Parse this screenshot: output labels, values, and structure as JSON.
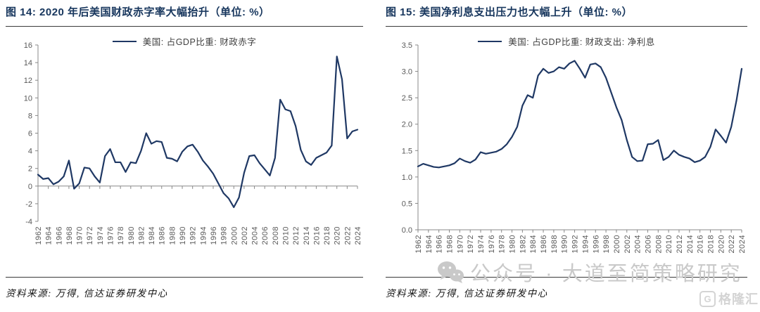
{
  "figures": [
    {
      "source": "资料来源: 万得, 信达证券研发中心"
    },
    {
      "source": "资料来源: 万得, 信达证券研发中心"
    }
  ],
  "watermark": {
    "icon": "wechat-icon",
    "text": "公众号 · 大道至简策略研究"
  },
  "brand": {
    "icon_letter": "G",
    "text": "格隆汇"
  },
  "colors": {
    "line": "#1F3864",
    "title": "#17365D",
    "axis": "#888888",
    "tick_label": "#595959",
    "rule": "#3a3a3a",
    "watermark": "#c9c9c9"
  },
  "chart_data": [
    {
      "type": "line",
      "title": "图 14: 2020 年后美国财政赤字率大幅抬升（单位: %）",
      "xlabel": "",
      "ylabel": "",
      "grid": false,
      "legend_position": "top",
      "ylim": [
        -4,
        16
      ],
      "ytick_step": 2,
      "yticks": [
        "16",
        "14",
        "12",
        "10",
        "8",
        "6",
        "4",
        "2",
        "0",
        "-2",
        "-4"
      ],
      "xticks": [
        "1962",
        "1964",
        "1966",
        "1968",
        "1970",
        "1972",
        "1974",
        "1976",
        "1978",
        "1980",
        "1982",
        "1984",
        "1986",
        "1988",
        "1990",
        "1992",
        "1994",
        "1996",
        "1998",
        "2000",
        "2002",
        "2004",
        "2006",
        "2008",
        "2010",
        "2012",
        "2014",
        "2016",
        "2018",
        "2020",
        "2022",
        "2024"
      ],
      "x": [
        1962,
        1963,
        1964,
        1965,
        1966,
        1967,
        1968,
        1969,
        1970,
        1971,
        1972,
        1973,
        1974,
        1975,
        1976,
        1977,
        1978,
        1979,
        1980,
        1981,
        1982,
        1983,
        1984,
        1985,
        1986,
        1987,
        1988,
        1989,
        1990,
        1991,
        1992,
        1993,
        1994,
        1995,
        1996,
        1997,
        1998,
        1999,
        2000,
        2001,
        2002,
        2003,
        2004,
        2005,
        2006,
        2007,
        2008,
        2009,
        2010,
        2011,
        2012,
        2013,
        2014,
        2015,
        2016,
        2017,
        2018,
        2019,
        2020,
        2021,
        2022,
        2023,
        2024
      ],
      "series": [
        {
          "name": "美国: 占GDP比重: 财政赤字",
          "values": [
            1.3,
            0.8,
            0.9,
            0.2,
            0.5,
            1.1,
            2.9,
            -0.3,
            0.3,
            2.1,
            2.0,
            1.1,
            0.4,
            3.4,
            4.2,
            2.7,
            2.7,
            1.6,
            2.7,
            2.6,
            4.0,
            6.0,
            4.8,
            5.1,
            5.0,
            3.2,
            3.1,
            2.8,
            3.9,
            4.5,
            4.7,
            3.9,
            2.9,
            2.2,
            1.4,
            0.3,
            -0.8,
            -1.4,
            -2.4,
            -1.3,
            1.5,
            3.4,
            3.5,
            2.6,
            1.9,
            1.2,
            3.2,
            9.8,
            8.7,
            8.5,
            6.8,
            4.1,
            2.8,
            2.4,
            3.2,
            3.5,
            3.8,
            4.6,
            14.7,
            12.1,
            5.4,
            6.2,
            6.4
          ]
        }
      ],
      "line_color": "#1F3864"
    },
    {
      "type": "line",
      "title": "图 15: 美国净利息支出压力也大幅上升（单位: %）",
      "xlabel": "",
      "ylabel": "",
      "grid": false,
      "legend_position": "top",
      "ylim": [
        0,
        3.5
      ],
      "ytick_step": 0.5,
      "yticks": [
        "3.5",
        "3.0",
        "2.5",
        "2.0",
        "1.5",
        "1.0",
        "0.5",
        "0.0"
      ],
      "xticks": [
        "1962",
        "1964",
        "1966",
        "1968",
        "1970",
        "1972",
        "1974",
        "1976",
        "1978",
        "1980",
        "1982",
        "1984",
        "1986",
        "1988",
        "1990",
        "1992",
        "1994",
        "1996",
        "1998",
        "2000",
        "2002",
        "2004",
        "2006",
        "2008",
        "2010",
        "2012",
        "2014",
        "2016",
        "2018",
        "2020",
        "2022",
        "2024"
      ],
      "x": [
        1962,
        1963,
        1964,
        1965,
        1966,
        1967,
        1968,
        1969,
        1970,
        1971,
        1972,
        1973,
        1974,
        1975,
        1976,
        1977,
        1978,
        1979,
        1980,
        1981,
        1982,
        1983,
        1984,
        1985,
        1986,
        1987,
        1988,
        1989,
        1990,
        1991,
        1992,
        1993,
        1994,
        1995,
        1996,
        1997,
        1998,
        1999,
        2000,
        2001,
        2002,
        2003,
        2004,
        2005,
        2006,
        2007,
        2008,
        2009,
        2010,
        2011,
        2012,
        2013,
        2014,
        2015,
        2016,
        2017,
        2018,
        2019,
        2020,
        2021,
        2022,
        2023,
        2024
      ],
      "series": [
        {
          "name": "美国: 占GDP比重: 财政支出: 净利息",
          "values": [
            1.2,
            1.25,
            1.22,
            1.19,
            1.18,
            1.2,
            1.22,
            1.26,
            1.35,
            1.3,
            1.27,
            1.33,
            1.47,
            1.44,
            1.46,
            1.48,
            1.53,
            1.62,
            1.76,
            1.95,
            2.35,
            2.55,
            2.5,
            2.92,
            3.05,
            2.97,
            3.0,
            3.08,
            3.05,
            3.15,
            3.2,
            3.05,
            2.88,
            3.13,
            3.15,
            3.08,
            2.88,
            2.6,
            2.32,
            2.08,
            1.7,
            1.38,
            1.3,
            1.31,
            1.62,
            1.63,
            1.7,
            1.32,
            1.38,
            1.5,
            1.42,
            1.38,
            1.35,
            1.28,
            1.31,
            1.38,
            1.57,
            1.9,
            1.78,
            1.65,
            1.95,
            2.45,
            3.05
          ]
        }
      ],
      "line_color": "#1F3864"
    }
  ]
}
